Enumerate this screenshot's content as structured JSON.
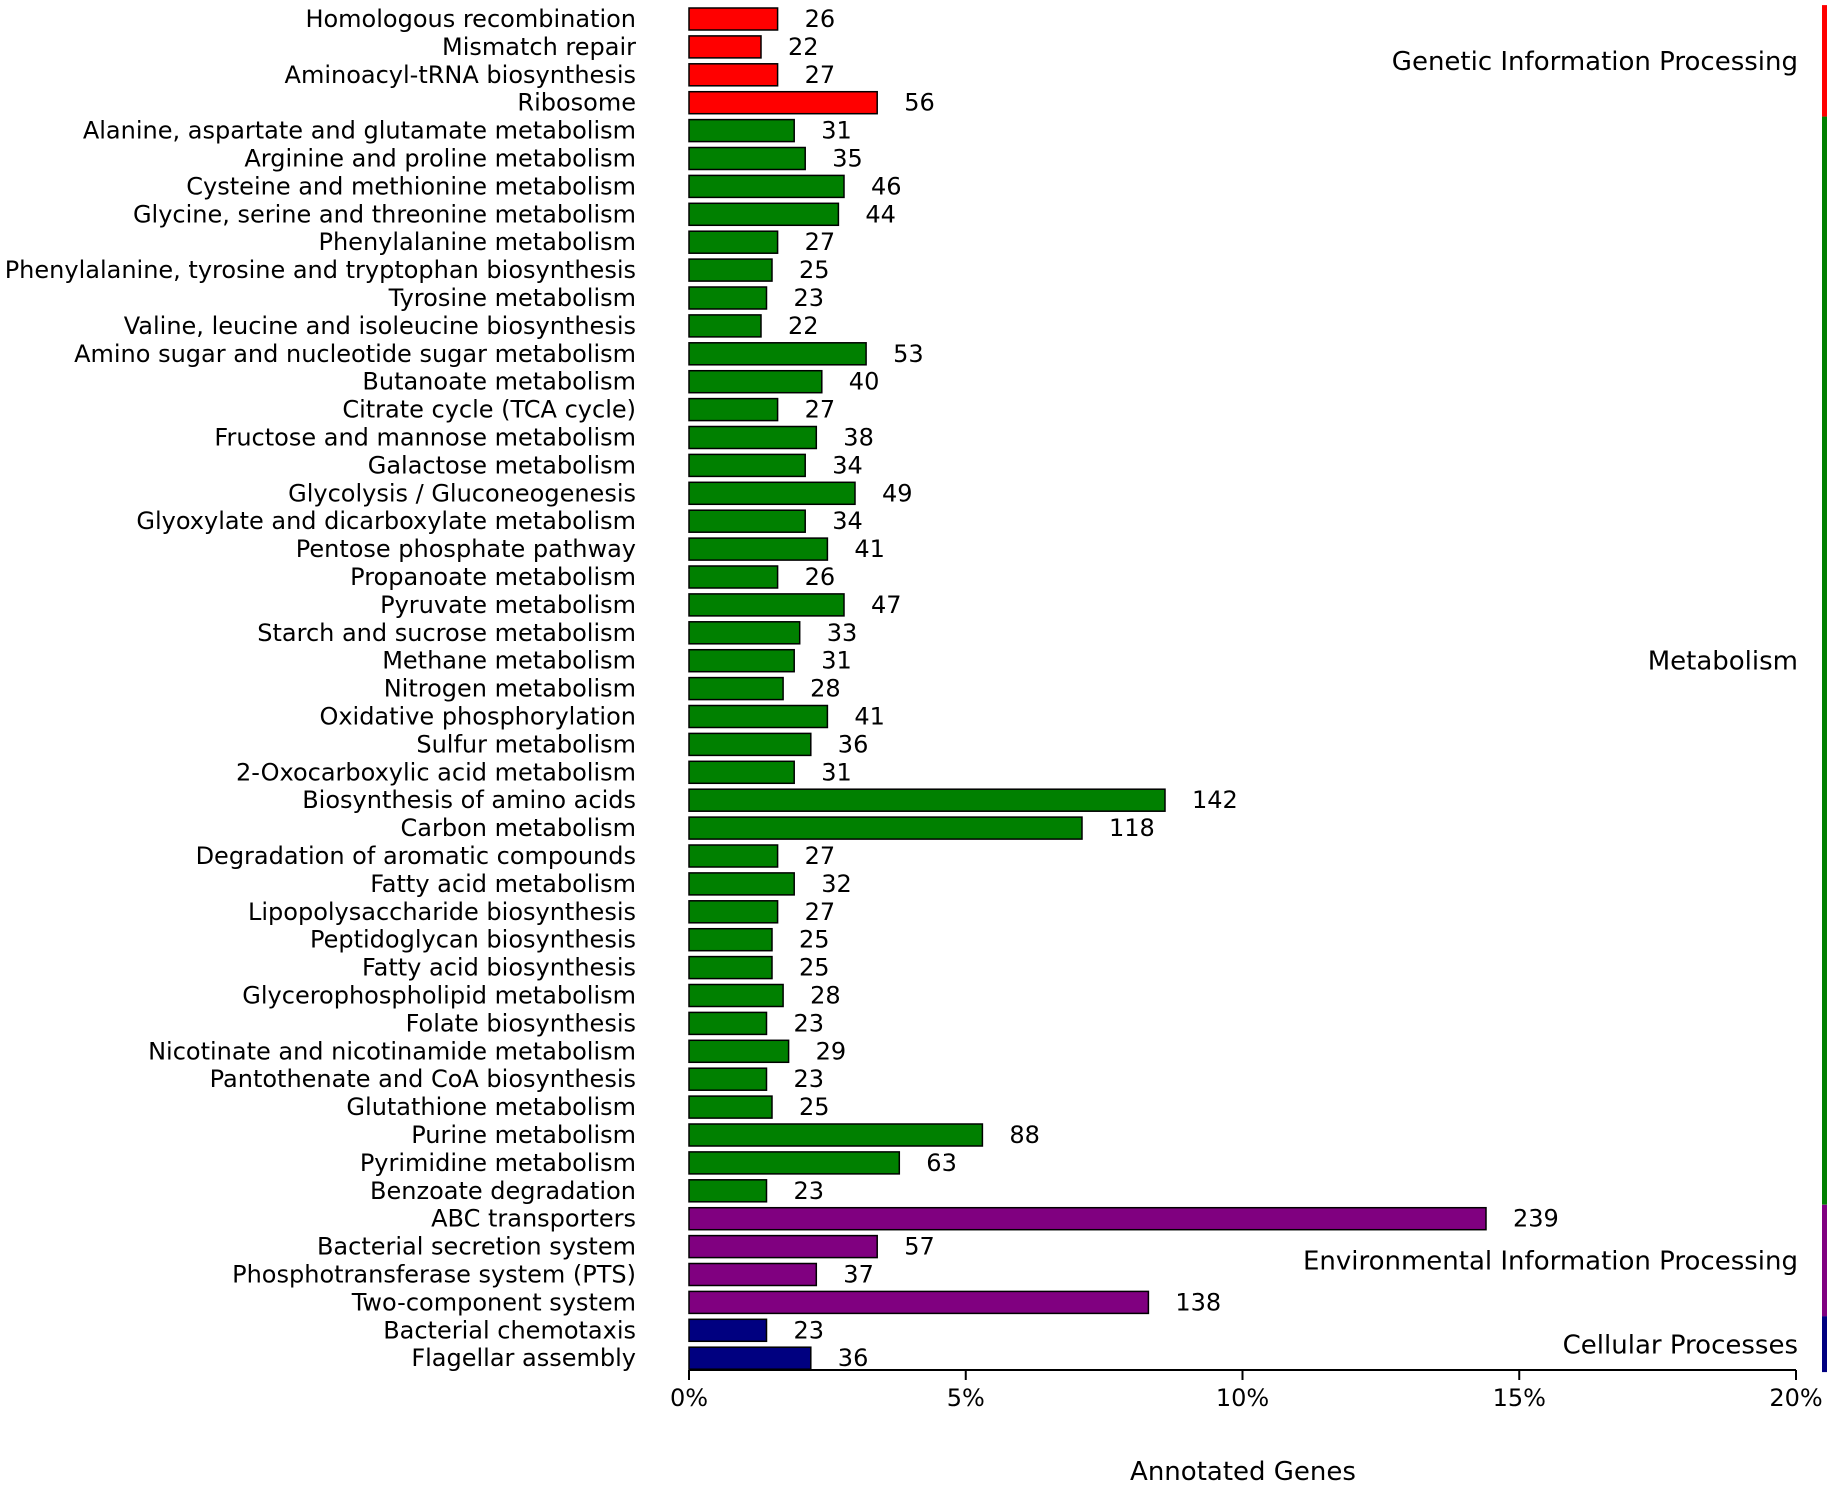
{
  "chart_data": {
    "type": "bar",
    "orientation": "horizontal",
    "title": "",
    "xlabel": "Annotated Genes",
    "ylabel": "",
    "xlim": [
      0,
      20
    ],
    "x_tick_values": [
      0,
      5,
      10,
      15,
      20
    ],
    "x_tick_labels": [
      "0%",
      "5%",
      "10%",
      "15%",
      "20%"
    ],
    "grid": false,
    "groups": [
      {
        "name": "Genetic Information Processing",
        "color": "#ff0000",
        "start": 0,
        "end": 3
      },
      {
        "name": "Metabolism",
        "color": "#008000",
        "start": 4,
        "end": 42
      },
      {
        "name": "Environmental Information Processing",
        "color": "#800080",
        "start": 43,
        "end": 46
      },
      {
        "name": "Cellular Processes",
        "color": "#000080",
        "start": 47,
        "end": 48
      }
    ],
    "categories": [
      "Homologous recombination",
      "Mismatch repair",
      "Aminoacyl-tRNA biosynthesis",
      "Ribosome",
      "Alanine, aspartate and glutamate metabolism",
      "Arginine and proline metabolism",
      "Cysteine and methionine metabolism",
      "Glycine, serine and threonine metabolism",
      "Phenylalanine metabolism",
      "Phenylalanine, tyrosine and tryptophan biosynthesis",
      "Tyrosine metabolism",
      "Valine, leucine and isoleucine biosynthesis",
      "Amino sugar and nucleotide sugar metabolism",
      "Butanoate metabolism",
      "Citrate cycle (TCA cycle)",
      "Fructose and mannose metabolism",
      "Galactose metabolism",
      "Glycolysis / Gluconeogenesis",
      "Glyoxylate and dicarboxylate metabolism",
      "Pentose phosphate pathway",
      "Propanoate metabolism",
      "Pyruvate metabolism",
      "Starch and sucrose metabolism",
      "Methane metabolism",
      "Nitrogen metabolism",
      "Oxidative phosphorylation",
      "Sulfur metabolism",
      "2-Oxocarboxylic acid metabolism",
      "Biosynthesis of amino acids",
      "Carbon metabolism",
      "Degradation of aromatic compounds",
      "Fatty acid metabolism",
      "Lipopolysaccharide biosynthesis",
      "Peptidoglycan biosynthesis",
      "Fatty acid biosynthesis",
      "Glycerophospholipid metabolism",
      "Folate biosynthesis",
      "Nicotinate and nicotinamide metabolism",
      "Pantothenate and CoA biosynthesis",
      "Glutathione metabolism",
      "Purine metabolism",
      "Pyrimidine metabolism",
      "Benzoate degradation",
      "ABC transporters",
      "Bacterial secretion system",
      "Phosphotransferase system (PTS)",
      "Two-component system",
      "Bacterial chemotaxis",
      "Flagellar assembly"
    ],
    "values": [
      26,
      22,
      27,
      56,
      31,
      35,
      46,
      44,
      27,
      25,
      23,
      22,
      53,
      40,
      27,
      38,
      34,
      49,
      34,
      41,
      26,
      47,
      33,
      31,
      28,
      41,
      36,
      31,
      142,
      118,
      27,
      32,
      27,
      25,
      25,
      28,
      23,
      29,
      23,
      25,
      88,
      63,
      23,
      239,
      57,
      37,
      138,
      23,
      36
    ],
    "percent": [
      1.6,
      1.3,
      1.6,
      3.4,
      1.9,
      2.1,
      2.8,
      2.7,
      1.6,
      1.5,
      1.4,
      1.3,
      3.2,
      2.4,
      1.6,
      2.3,
      2.1,
      3.0,
      2.1,
      2.5,
      1.6,
      2.8,
      2.0,
      1.9,
      1.7,
      2.5,
      2.2,
      1.9,
      8.6,
      7.1,
      1.6,
      1.9,
      1.6,
      1.5,
      1.5,
      1.7,
      1.4,
      1.8,
      1.4,
      1.5,
      5.3,
      3.8,
      1.4,
      14.4,
      3.4,
      2.3,
      8.3,
      1.4,
      2.2
    ]
  }
}
